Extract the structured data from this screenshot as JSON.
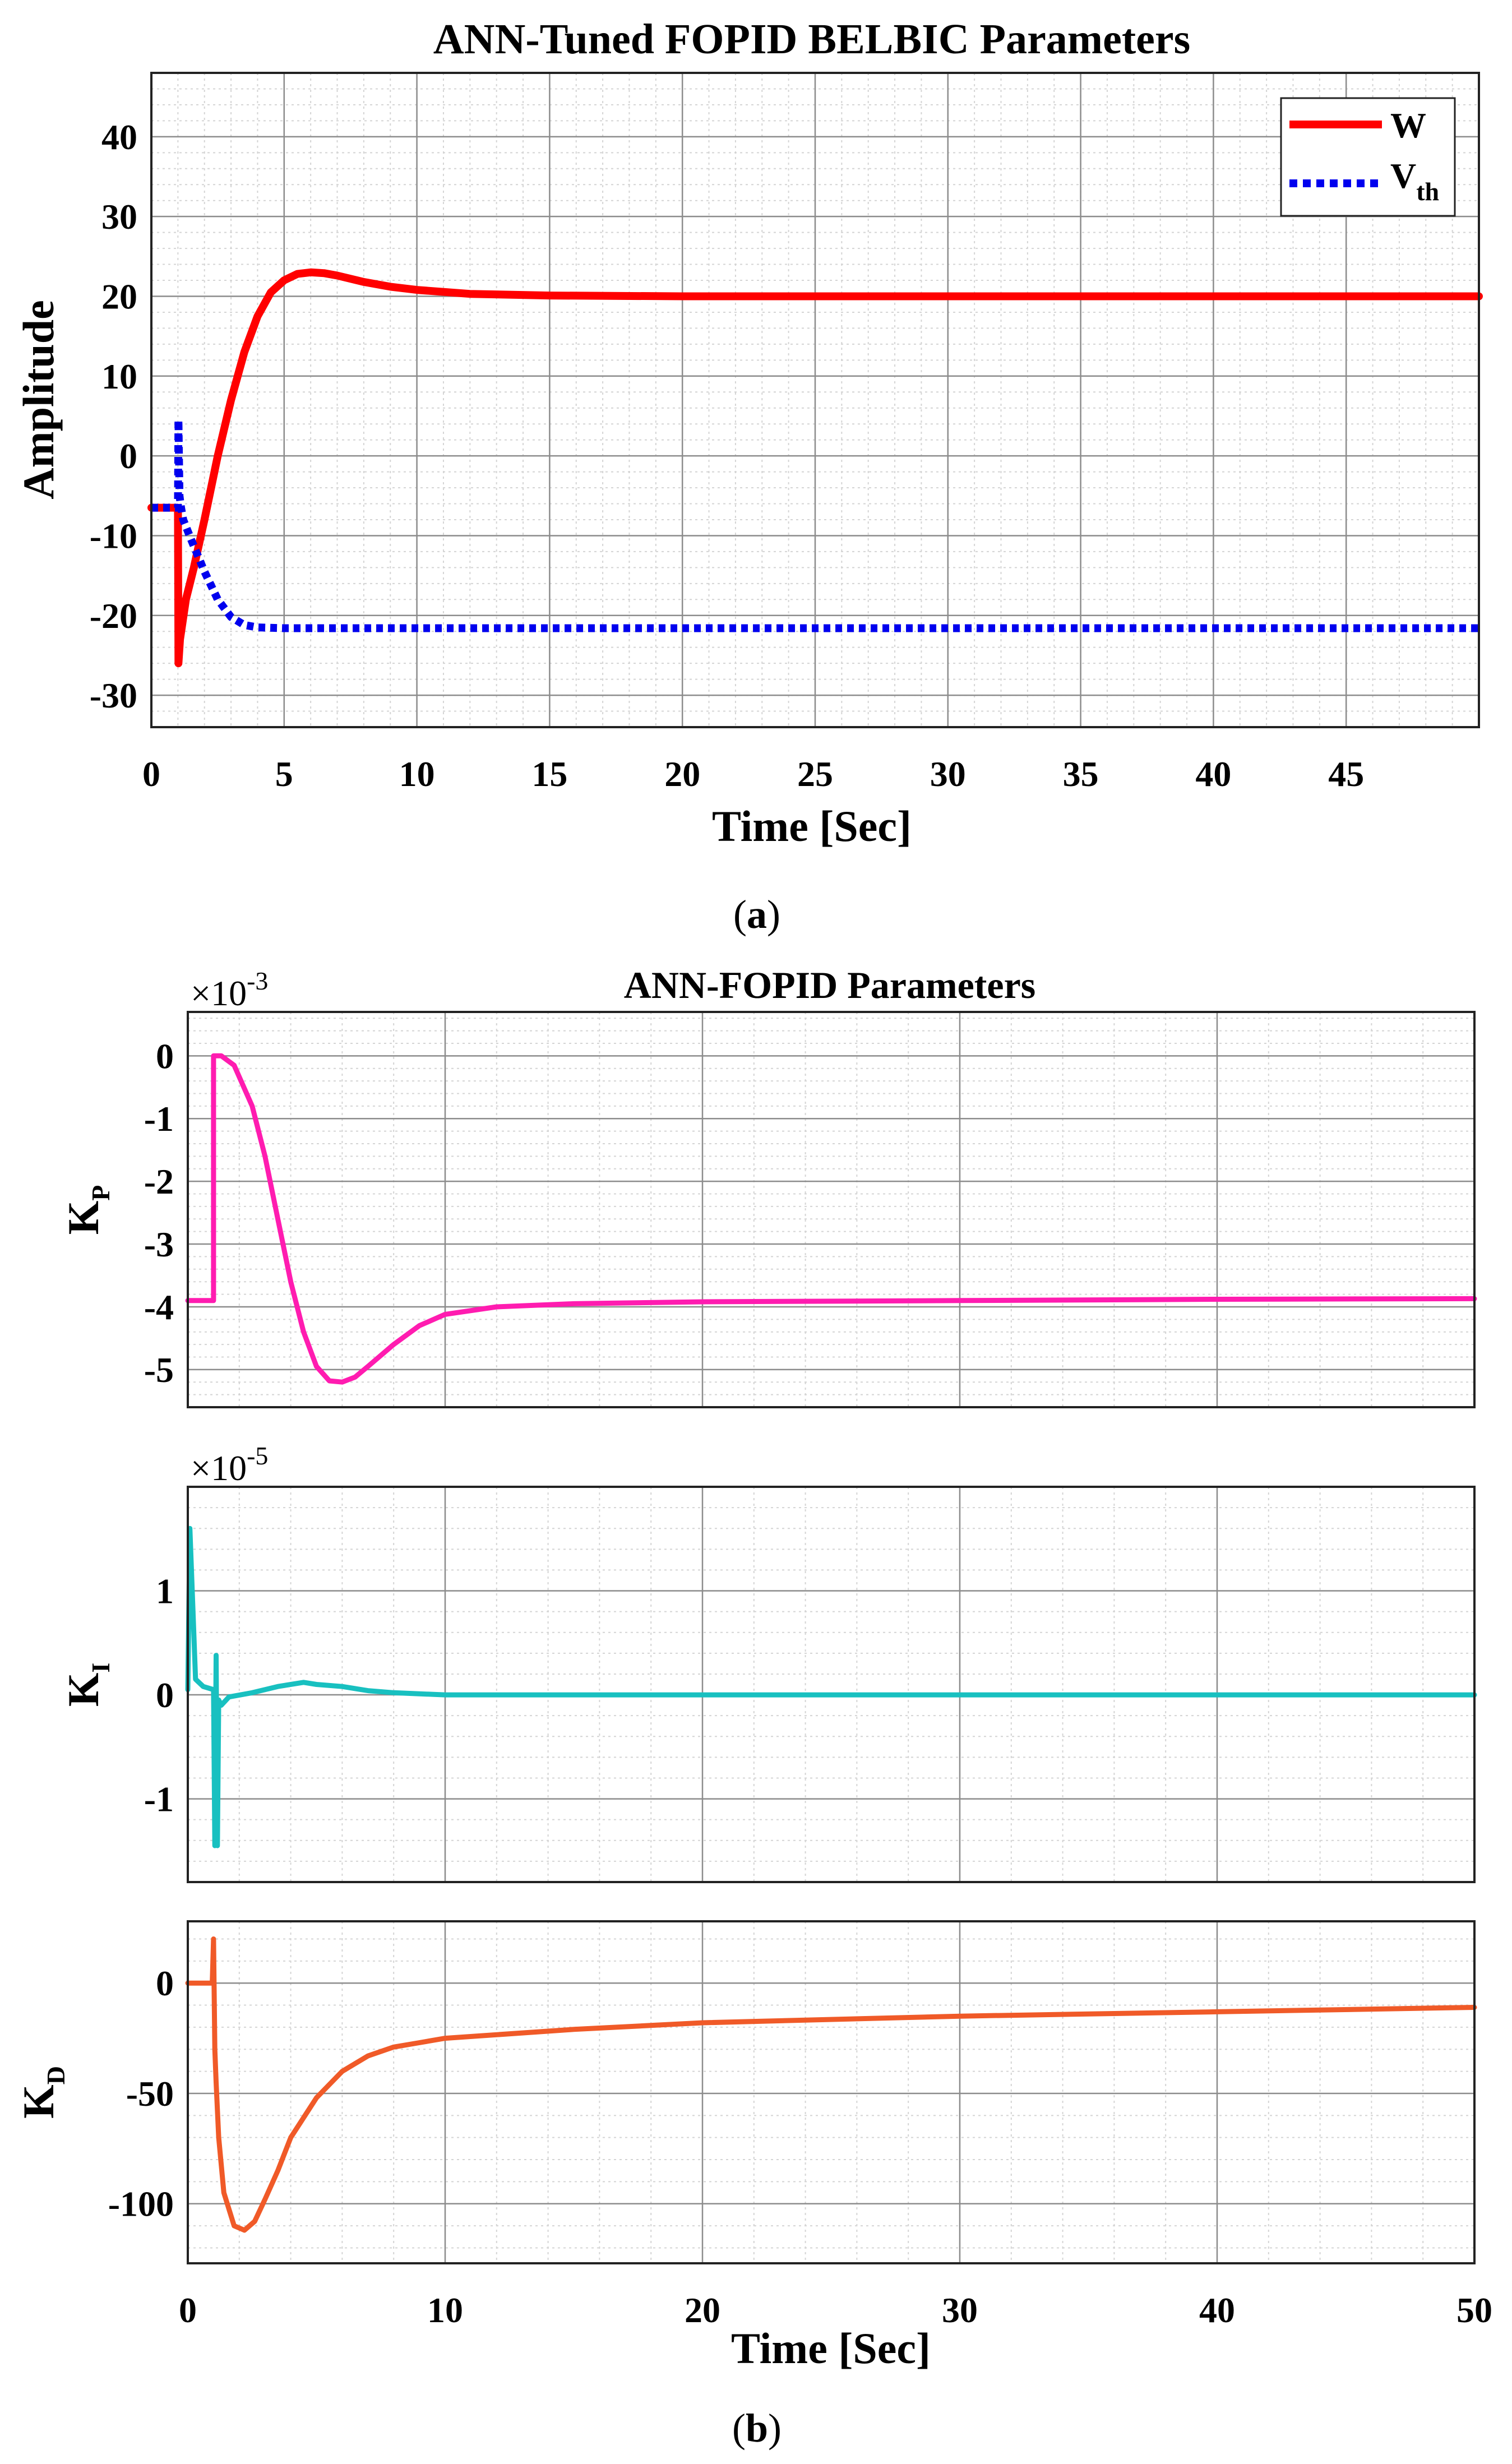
{
  "subplot_labels": {
    "a": "a",
    "b": "b"
  },
  "chart_data": [
    {
      "id": "a",
      "type": "line",
      "title": "ANN-Tuned FOPID BELBIC Parameters",
      "xlabel": "Time [Sec]",
      "ylabel": "Amplitude",
      "xlim": [
        0,
        50
      ],
      "ylim": [
        -34,
        48
      ],
      "xticks": [
        0,
        5,
        10,
        15,
        20,
        25,
        30,
        35,
        40,
        45
      ],
      "yticks": [
        -30,
        -20,
        -10,
        0,
        10,
        20,
        30,
        40
      ],
      "grid": true,
      "minor_grid": true,
      "legend_position": "top-right",
      "series": [
        {
          "name": "W",
          "color": "#ff0000",
          "style": "solid",
          "x": [
            0,
            1.0,
            1.02,
            1.08,
            1.3,
            1.6,
            2.0,
            2.5,
            3.0,
            3.5,
            4.0,
            4.5,
            5.0,
            5.5,
            6.0,
            6.5,
            7.0,
            8.0,
            9.0,
            10.0,
            12.0,
            15.0,
            20.0,
            30.0,
            40.0,
            50.0
          ],
          "y": [
            -6.5,
            -6.5,
            -26,
            -23,
            -18,
            -14,
            -8,
            0,
            7,
            13,
            17.5,
            20.5,
            22,
            22.8,
            23,
            22.9,
            22.6,
            21.8,
            21.2,
            20.8,
            20.3,
            20.1,
            20.0,
            20.0,
            20.0,
            20.0
          ]
        },
        {
          "name": "V_th",
          "legend_main": "V",
          "legend_sub": "th",
          "color": "#0000ee",
          "style": "dotted",
          "x": [
            0,
            1.0,
            1.02,
            1.06,
            1.12,
            1.2,
            1.5,
            2.0,
            2.5,
            3.0,
            3.5,
            4.0,
            5.0,
            10.0,
            20.0,
            30.0,
            40.0,
            50.0
          ],
          "y": [
            -6.5,
            -6.5,
            4.5,
            -5,
            -6.5,
            -8,
            -10.5,
            -14.5,
            -18,
            -20.2,
            -21.2,
            -21.5,
            -21.6,
            -21.6,
            -21.6,
            -21.6,
            -21.6,
            -21.6
          ]
        }
      ]
    },
    {
      "id": "b1",
      "type": "line",
      "title": "ANN-FOPID Parameters",
      "ylabel_main": "K",
      "ylabel_sub": "P",
      "exponent_base": "×10",
      "exponent_power": "-3",
      "xlim": [
        0,
        50
      ],
      "ylim": [
        -5.6,
        0.7
      ],
      "xticks": [
        0,
        10,
        20,
        30,
        40,
        50
      ],
      "yticks": [
        -5,
        -4,
        -3,
        -2,
        -1,
        0
      ],
      "grid": true,
      "minor_grid": true,
      "series": [
        {
          "name": "K_P",
          "color": "#ff1cb0",
          "style": "solid",
          "x": [
            0,
            1.0,
            1.0,
            1.3,
            1.8,
            2.5,
            3.0,
            3.5,
            4.0,
            4.5,
            5.0,
            5.5,
            6.0,
            6.5,
            7.0,
            8.0,
            9.0,
            10.0,
            12.0,
            15.0,
            20.0,
            30.0,
            40.0,
            50.0
          ],
          "y": [
            -3.9,
            -3.9,
            0,
            0,
            -0.15,
            -0.8,
            -1.6,
            -2.6,
            -3.6,
            -4.4,
            -4.95,
            -5.18,
            -5.2,
            -5.12,
            -4.95,
            -4.6,
            -4.3,
            -4.12,
            -4.0,
            -3.95,
            -3.92,
            -3.9,
            -3.88,
            -3.87
          ]
        }
      ]
    },
    {
      "id": "b2",
      "type": "line",
      "ylabel_main": "K",
      "ylabel_sub": "I",
      "exponent_base": "×10",
      "exponent_power": "-5",
      "xlim": [
        0,
        50
      ],
      "ylim": [
        -1.8,
        2.0
      ],
      "xticks": [
        0,
        10,
        20,
        30,
        40,
        50
      ],
      "yticks": [
        -1,
        0,
        1
      ],
      "grid": true,
      "minor_grid": true,
      "series": [
        {
          "name": "K_I",
          "color": "#18c0c0",
          "style": "solid",
          "x": [
            0,
            0.08,
            0.3,
            0.6,
            1.0,
            1.05,
            1.1,
            1.15,
            1.2,
            1.3,
            1.6,
            2.5,
            3.5,
            4.5,
            5.0,
            6.0,
            7.0,
            8.0,
            10.0,
            20.0,
            30.0,
            40.0,
            50.0
          ],
          "y": [
            0.05,
            1.6,
            0.15,
            0.08,
            0.05,
            -1.45,
            0.38,
            -1.45,
            -0.05,
            -0.1,
            -0.02,
            0.02,
            0.08,
            0.12,
            0.1,
            0.08,
            0.04,
            0.02,
            0.0,
            0.0,
            0.0,
            0.0,
            0.0
          ]
        }
      ]
    },
    {
      "id": "b3",
      "type": "line",
      "xlabel": "Time [Sec]",
      "ylabel_main": "K",
      "ylabel_sub": "D",
      "xlim": [
        0,
        50
      ],
      "ylim": [
        -127,
        28
      ],
      "xticks": [
        0,
        10,
        20,
        30,
        40,
        50
      ],
      "yticks": [
        -100,
        -50,
        0
      ],
      "grid": true,
      "minor_grid": true,
      "series": [
        {
          "name": "K_D",
          "color": "#f05a28",
          "style": "solid",
          "x": [
            0,
            0.95,
            1.0,
            1.05,
            1.1,
            1.2,
            1.4,
            1.8,
            2.2,
            2.6,
            3.0,
            3.5,
            4.0,
            5.0,
            6.0,
            7.0,
            8.0,
            9.0,
            10.0,
            15.0,
            20.0,
            30.0,
            40.0,
            50.0
          ],
          "y": [
            0,
            0,
            20,
            -30,
            -45,
            -70,
            -95,
            -110,
            -112,
            -108,
            -98,
            -85,
            -70,
            -52,
            -40,
            -33,
            -29,
            -27,
            -25,
            -21,
            -18,
            -15,
            -13,
            -11
          ]
        }
      ]
    }
  ]
}
